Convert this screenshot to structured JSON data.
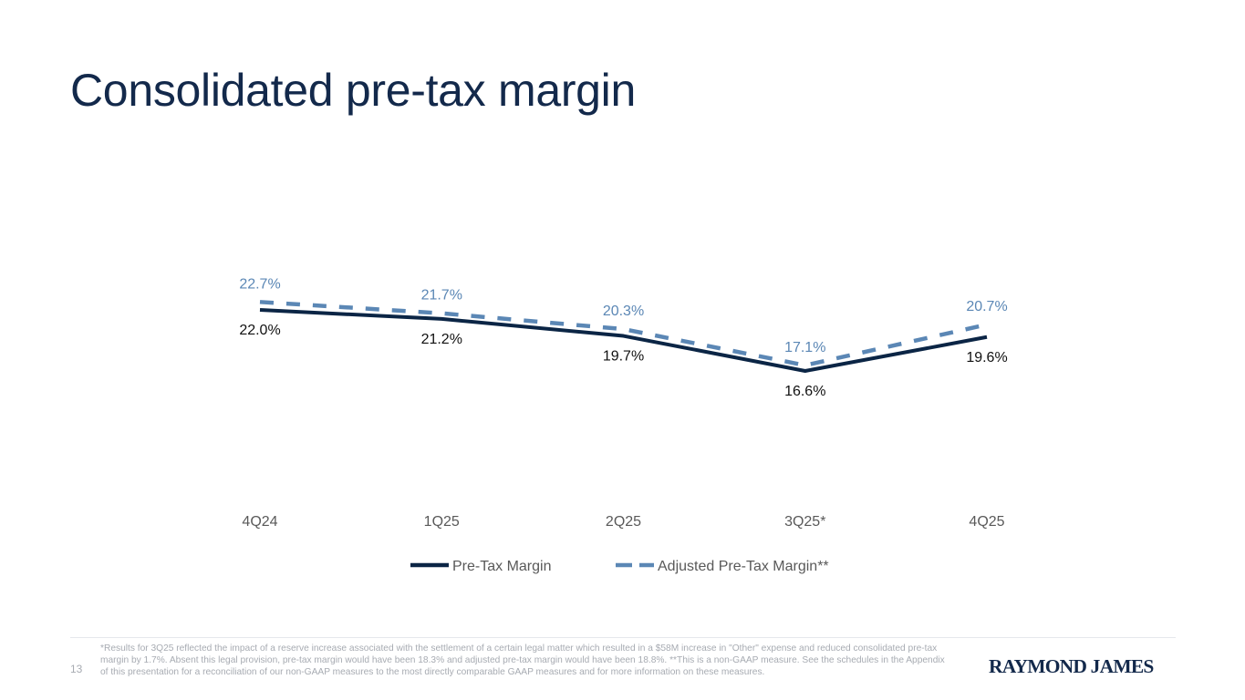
{
  "page": {
    "title": "Consolidated pre-tax margin",
    "page_number": "13",
    "footnote": "*Results for 3Q25 reflected the impact of a reserve increase associated with the settlement of a certain legal matter which resulted in a $58M increase in \"Other\" expense and reduced consolidated pre-tax margin by 1.7%. Absent this legal provision, pre-tax margin would have been 18.3% and adjusted pre-tax margin would have been 18.8%.  **This is a non-GAAP measure. See the schedules in the Appendix of this presentation for a reconciliation of our non-GAAP measures to the most directly comparable GAAP measures and for more information on these measures.",
    "logo_text": "RAYMOND JAMES"
  },
  "chart_data": {
    "type": "line",
    "title": "Consolidated pre-tax margin",
    "xlabel": "",
    "ylabel": "",
    "categories": [
      "4Q24",
      "1Q25",
      "2Q25",
      "3Q25*",
      "4Q25"
    ],
    "ylim": [
      10,
      30
    ],
    "grid": false,
    "legend_position": "bottom",
    "series": [
      {
        "name": "Pre-Tax Margin",
        "values": [
          22.0,
          21.2,
          19.7,
          16.6,
          19.6
        ],
        "labels": [
          "22.0%",
          "21.2%",
          "19.7%",
          "16.6%",
          "19.6%"
        ],
        "color": "#0b2545",
        "label_color": "#111111",
        "style": "solid"
      },
      {
        "name": "Adjusted Pre-Tax Margin**",
        "values": [
          22.7,
          21.7,
          20.3,
          17.1,
          20.7
        ],
        "labels": [
          "22.7%",
          "21.7%",
          "20.3%",
          "17.1%",
          "20.7%"
        ],
        "color": "#5b87b5",
        "label_color": "#5b87b5",
        "style": "dashed"
      }
    ],
    "axis_label_color": "#595959"
  }
}
